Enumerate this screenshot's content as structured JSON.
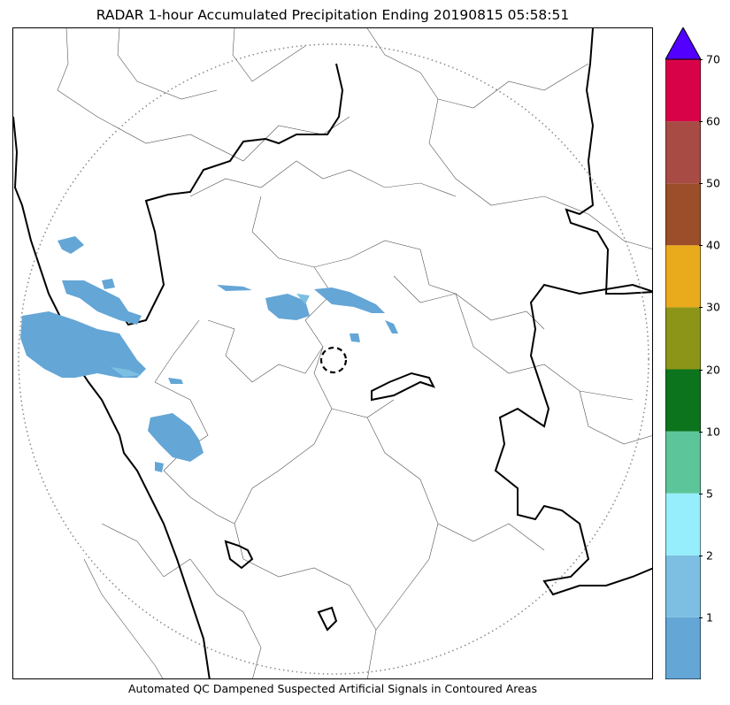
{
  "title": "RADAR 1-hour Accumulated Precipitation Ending 20190815 05:58:51",
  "footnote": "Automated QC Dampened Suspected Artificial Signals in Contoured Areas",
  "colorbar": {
    "bins": [
      {
        "from": 0,
        "to": 1,
        "color": "#64a6d6"
      },
      {
        "from": 1,
        "to": 2,
        "color": "#7cbfe2"
      },
      {
        "from": 2,
        "to": 5,
        "color": "#96eefd"
      },
      {
        "from": 5,
        "to": 10,
        "color": "#5cc59a"
      },
      {
        "from": 10,
        "to": 20,
        "color": "#0b741c"
      },
      {
        "from": 20,
        "to": 30,
        "color": "#8c9518"
      },
      {
        "from": 30,
        "to": 40,
        "color": "#e9aa1c"
      },
      {
        "from": 40,
        "to": 50,
        "color": "#9b4e29"
      },
      {
        "from": 50,
        "to": 60,
        "color": "#a84b44"
      },
      {
        "from": 60,
        "to": 70,
        "color": "#d80248"
      }
    ],
    "overflow_color": "#5200ff",
    "tick_labels": [
      "1",
      "2",
      "5",
      "10",
      "20",
      "30",
      "40",
      "50",
      "60",
      "70"
    ]
  },
  "map": {
    "range_ring": "dotted-grey",
    "radar_site": "dashed-circle",
    "precip_color_main": "#64a6d6"
  }
}
